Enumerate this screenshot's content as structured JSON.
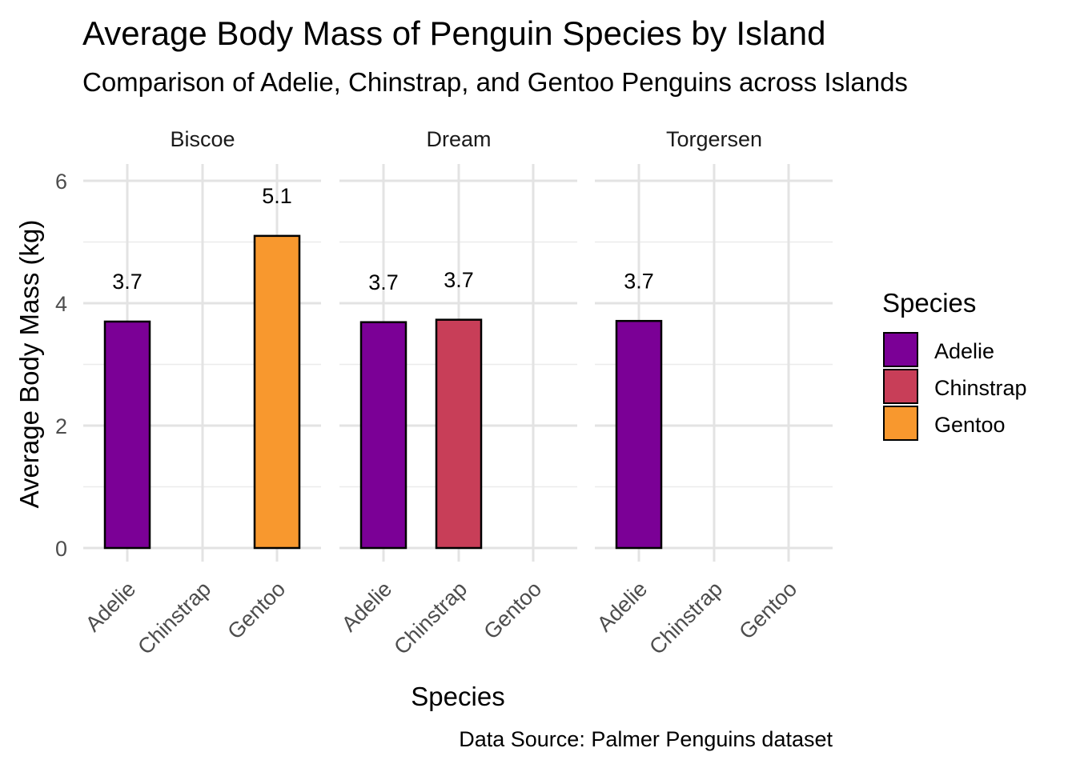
{
  "chart_data": {
    "type": "bar",
    "title": "Average Body Mass of Penguin Species by Island",
    "subtitle": "Comparison of Adelie, Chinstrap, and Gentoo Penguins across Islands",
    "xlabel": "Species",
    "ylabel": "Average Body Mass (kg)",
    "caption": "Data Source: Palmer Penguins dataset",
    "ylim": [
      0,
      6.3
    ],
    "y_ticks": [
      0,
      2,
      4,
      6
    ],
    "grid": true,
    "legend": {
      "title": "Species",
      "position": "right"
    },
    "categories": [
      "Adelie",
      "Chinstrap",
      "Gentoo"
    ],
    "colors": {
      "Adelie": "#7B0096",
      "Chinstrap": "#C83E58",
      "Gentoo": "#F8982E"
    },
    "facets": [
      {
        "name": "Biscoe",
        "bars": [
          {
            "species": "Adelie",
            "value": 3.7,
            "label": "3.7"
          },
          {
            "species": "Gentoo",
            "value": 5.1,
            "label": "5.1"
          }
        ]
      },
      {
        "name": "Dream",
        "bars": [
          {
            "species": "Adelie",
            "value": 3.69,
            "label": "3.7"
          },
          {
            "species": "Chinstrap",
            "value": 3.73,
            "label": "3.7"
          }
        ]
      },
      {
        "name": "Torgersen",
        "bars": [
          {
            "species": "Adelie",
            "value": 3.71,
            "label": "3.7"
          }
        ]
      }
    ]
  }
}
